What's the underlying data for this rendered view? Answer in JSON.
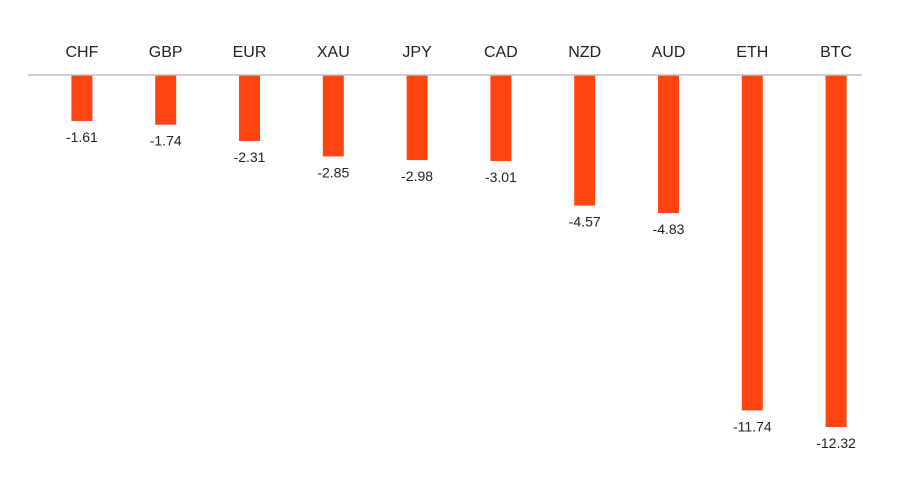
{
  "chart_data": {
    "type": "bar",
    "orientation": "vertical",
    "categories": [
      "CHF",
      "GBP",
      "EUR",
      "XAU",
      "JPY",
      "CAD",
      "NZD",
      "AUD",
      "ETH",
      "BTC"
    ],
    "values": [
      -1.61,
      -1.74,
      -2.31,
      -2.85,
      -2.98,
      -3.01,
      -4.57,
      -4.83,
      -11.74,
      -12.32
    ],
    "data_labels": [
      "-1.61",
      "-1.74",
      "-2.31",
      "-2.85",
      "-2.98",
      "-3.01",
      "-4.57",
      "-4.83",
      "-11.74",
      "-12.32"
    ],
    "title": "",
    "xlabel": "",
    "ylabel": "",
    "ylim": [
      -12.32,
      0
    ],
    "grid": false,
    "legend": "none",
    "category_labels_position": "top",
    "colors": {
      "bar": "#FF4512",
      "axis": "#BFBFBF",
      "text": "#222222",
      "background": "#FFFFFF"
    }
  }
}
